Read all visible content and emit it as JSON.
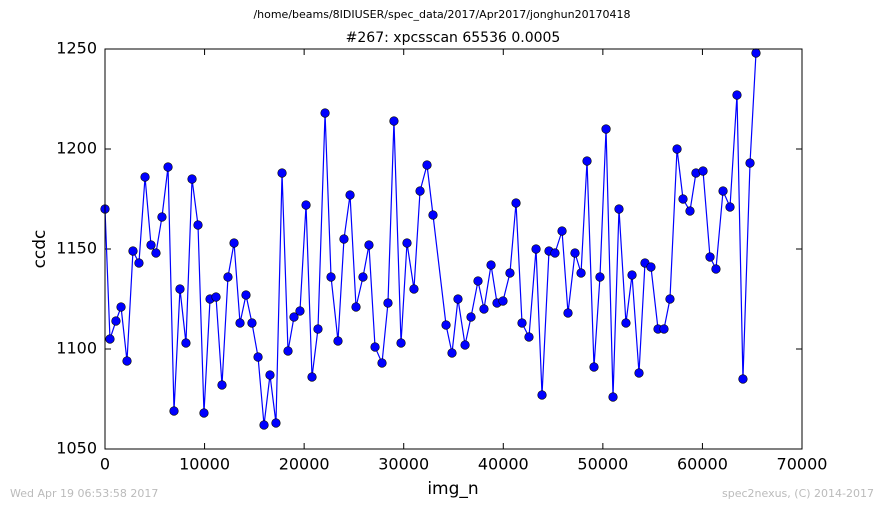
{
  "chart_data": {
    "type": "line",
    "header": "/home/beams/8IDIUSER/spec_data/2017/Apr2017/jonghun20170418",
    "title": "#267: xpcsscan 65536 0.0005",
    "xlabel": "img_n",
    "ylabel": "ccdc",
    "footer_left": "Wed Apr 19 06:53:58 2017",
    "footer_right": "spec2nexus, (C) 2014-2017",
    "xlim": [
      0,
      70000
    ],
    "ylim": [
      1050,
      1250
    ],
    "xticks": [
      0,
      10000,
      20000,
      30000,
      40000,
      50000,
      60000,
      70000
    ],
    "yticks": [
      1050,
      1100,
      1150,
      1200,
      1250
    ],
    "x": [
      0,
      500,
      1100,
      1610,
      2210,
      2810,
      3410,
      4020,
      4620,
      5120,
      5720,
      6330,
      6930,
      7530,
      8130,
      8740,
      9340,
      9940,
      10550,
      11150,
      11750,
      12350,
      12960,
      13560,
      14160,
      14760,
      15370,
      15970,
      16570,
      17170,
      17780,
      18380,
      18980,
      19580,
      20190,
      20790,
      21390,
      22100,
      22700,
      23400,
      24000,
      24610,
      25210,
      25910,
      26510,
      27120,
      27820,
      28420,
      29020,
      29730,
      30330,
      31030,
      31640,
      32340,
      32940,
      34250,
      34850,
      35450,
      36160,
      36760,
      37460,
      38060,
      38770,
      39370,
      39970,
      40670,
      41280,
      41880,
      42580,
      43290,
      43890,
      44590,
      45190,
      45900,
      46500,
      47200,
      47810,
      48410,
      49110,
      49710,
      50320,
      51020,
      51620,
      52320,
      52930,
      53630,
      54230,
      54830,
      55540,
      56140,
      56740,
      57450,
      58050,
      58750,
      59350,
      60060,
      60760,
      61360,
      62070,
      62770,
      63470,
      64070,
      64780,
      65380
    ],
    "series": [
      {
        "name": "ccdc",
        "color": "#0000ff",
        "values": [
          1170,
          1105,
          1114,
          1121,
          1094,
          1149,
          1143,
          1186,
          1152,
          1148,
          1166,
          1191,
          1069,
          1130,
          1103,
          1185,
          1162,
          1068,
          1125,
          1126,
          1082,
          1136,
          1153,
          1113,
          1127,
          1113,
          1096,
          1062,
          1087,
          1063,
          1188,
          1099,
          1116,
          1119,
          1172,
          1086,
          1110,
          1218,
          1136,
          1104,
          1155,
          1177,
          1121,
          1136,
          1152,
          1101,
          1093,
          1123,
          1214,
          1103,
          1153,
          1130,
          1179,
          1192,
          1167,
          1112,
          1098,
          1125,
          1102,
          1116,
          1134,
          1120,
          1142,
          1123,
          1124,
          1138,
          1173,
          1113,
          1106,
          1150,
          1077,
          1149,
          1148,
          1159,
          1118,
          1148,
          1138,
          1194,
          1091,
          1136,
          1210,
          1076,
          1170,
          1113,
          1137,
          1088,
          1143,
          1141,
          1110,
          1110,
          1125,
          1200,
          1175,
          1169,
          1188,
          1189,
          1146,
          1140,
          1179,
          1171,
          1227,
          1085,
          1193,
          1248
        ]
      }
    ]
  }
}
